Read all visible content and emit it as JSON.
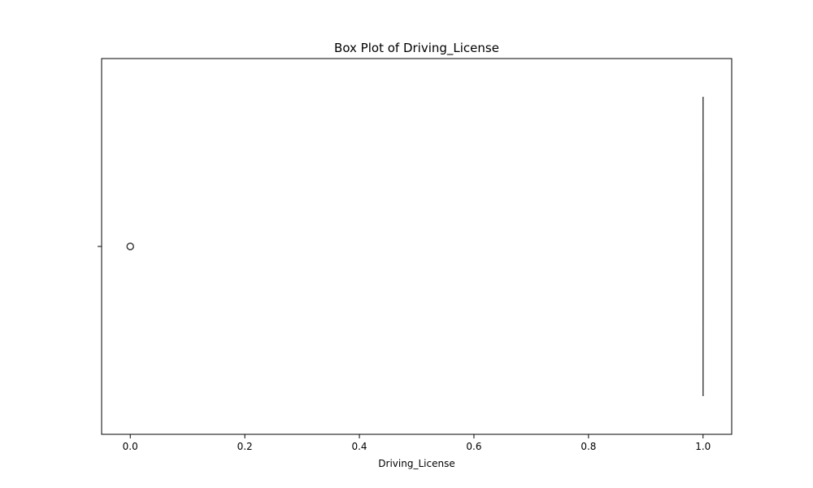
{
  "chart_data": {
    "type": "box",
    "orientation": "horizontal",
    "title": "Box Plot of Driving_License",
    "xlabel": "Driving_License",
    "ylabel": "",
    "xlim": [
      -0.05,
      1.05
    ],
    "xticks": [
      0.0,
      0.2,
      0.4,
      0.6,
      0.8,
      1.0
    ],
    "xtick_labels": [
      "0.0",
      "0.2",
      "0.4",
      "0.6",
      "0.8",
      "1.0"
    ],
    "grid": false,
    "series": [
      {
        "min": 1.0,
        "q1": 1.0,
        "median": 1.0,
        "q3": 1.0,
        "max": 1.0,
        "outliers": [
          0.0
        ]
      }
    ],
    "colors": {
      "box": "#4a4a4a",
      "outlier": "#3d3d3d",
      "frame": "#000000"
    }
  }
}
